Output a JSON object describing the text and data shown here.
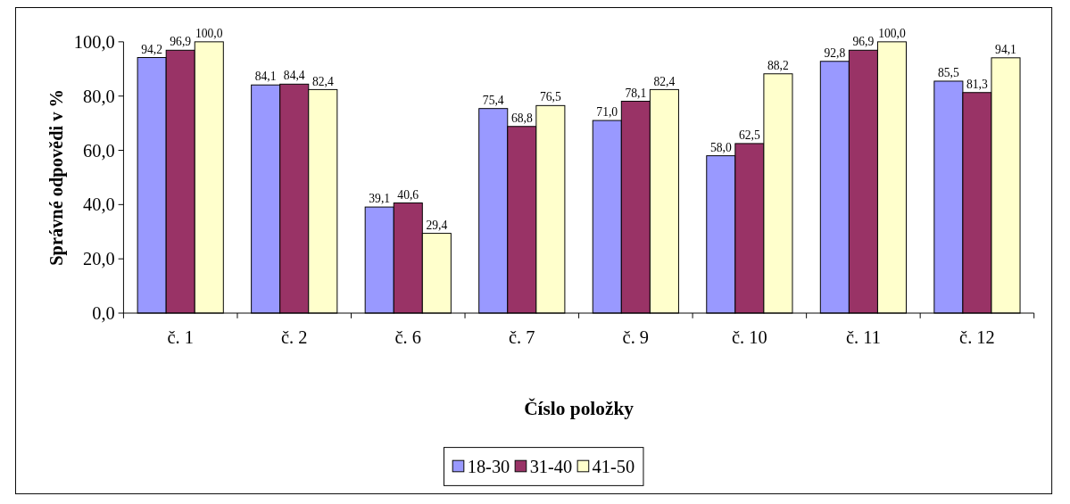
{
  "chart_data": {
    "type": "bar",
    "xlabel": "Číslo položky",
    "ylabel": "Správné odpovědi v %",
    "categories": [
      "č. 1",
      "č. 2",
      "č. 6",
      "č. 7",
      "č. 9",
      "č. 10",
      "č. 11",
      "č. 12"
    ],
    "series": [
      {
        "name": "18-30",
        "color": "#9999ff",
        "values": [
          94.2,
          84.1,
          39.1,
          75.4,
          71.0,
          58.0,
          92.8,
          85.5
        ],
        "value_labels": [
          "94,2",
          "84,1",
          "39,1",
          "75,4",
          "71,0",
          "58,0",
          "92,8",
          "85,5"
        ]
      },
      {
        "name": "31-40",
        "color": "#993366",
        "values": [
          96.9,
          84.4,
          40.6,
          68.8,
          78.1,
          62.5,
          96.9,
          81.3
        ],
        "value_labels": [
          "96,9",
          "84,4",
          "40,6",
          "68,8",
          "78,1",
          "62,5",
          "96,9",
          "81,3"
        ]
      },
      {
        "name": "41-50",
        "color": "#ffffcc",
        "values": [
          100.0,
          82.4,
          29.4,
          76.5,
          82.4,
          88.2,
          100.0,
          94.1
        ],
        "value_labels": [
          "100,0",
          "82,4",
          "29,4",
          "76,5",
          "82,4",
          "88,2",
          "100,0",
          "94,1"
        ]
      }
    ],
    "ylim": [
      0,
      100
    ],
    "yticks": [
      {
        "value": 0,
        "label": "0,0"
      },
      {
        "value": 20,
        "label": "20,0"
      },
      {
        "value": 40,
        "label": "40,0"
      },
      {
        "value": 60,
        "label": "60,0"
      },
      {
        "value": 80,
        "label": "80,0"
      },
      {
        "value": 100,
        "label": "100,0"
      }
    ],
    "legend": "bottom",
    "grid": false
  }
}
